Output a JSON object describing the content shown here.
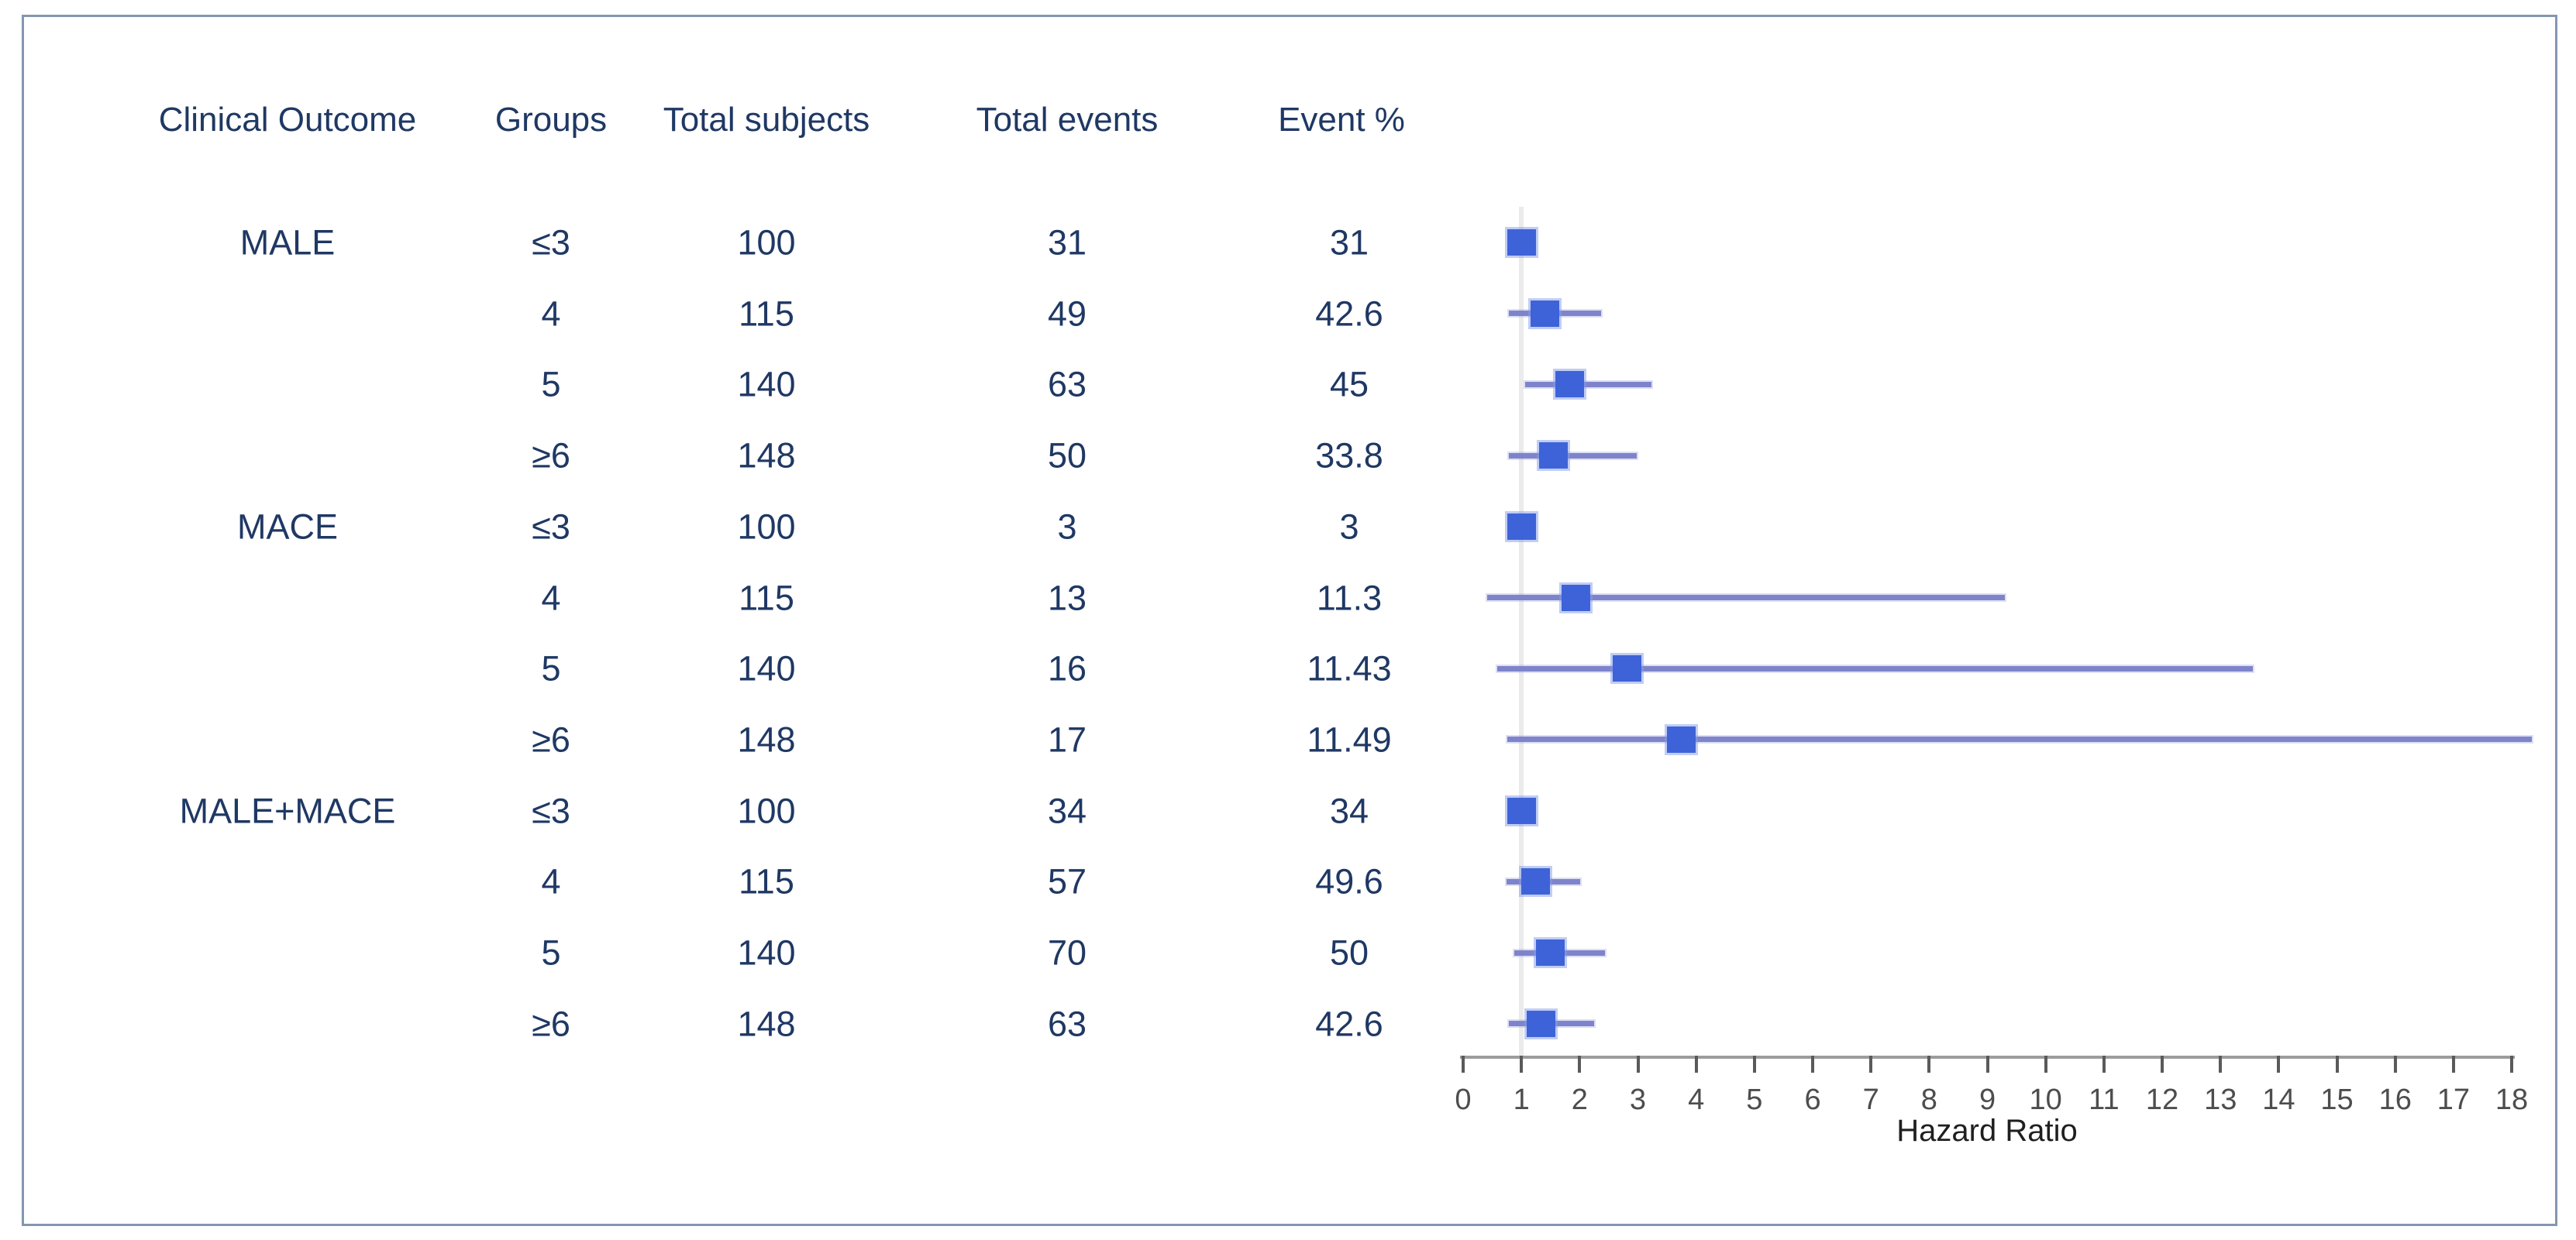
{
  "figure": {
    "border_color": "#8496B0",
    "background": "#FFFFFF"
  },
  "chart_data": {
    "type": "forest",
    "title": "",
    "columns": [
      "Clinical Outcome",
      "Groups",
      "Total subjects",
      "Total events",
      "Event %"
    ],
    "xlabel": "Hazard Ratio",
    "xlim": [
      0,
      18
    ],
    "xticks": [
      0,
      1,
      2,
      3,
      4,
      5,
      6,
      7,
      8,
      9,
      10,
      11,
      12,
      13,
      14,
      15,
      16,
      17,
      18
    ],
    "reference_line_x": 1,
    "grid": false,
    "rows": [
      {
        "outcome": "MALE",
        "group": "≤3",
        "subjects": "100",
        "events": "31",
        "event_pct": "31",
        "hr": 1.0,
        "ci_low": null,
        "ci_high": null
      },
      {
        "outcome": "",
        "group": "4",
        "subjects": "115",
        "events": "49",
        "event_pct": "42.6",
        "hr": 1.4,
        "ci_low": 0.79,
        "ci_high": 2.37
      },
      {
        "outcome": "",
        "group": "5",
        "subjects": "140",
        "events": "63",
        "event_pct": "45",
        "hr": 1.83,
        "ci_low": 1.06,
        "ci_high": 3.23
      },
      {
        "outcome": "",
        "group": "≥6",
        "subjects": "148",
        "events": "50",
        "event_pct": "33.8",
        "hr": 1.55,
        "ci_low": 0.78,
        "ci_high": 2.98
      },
      {
        "outcome": "MACE",
        "group": "≤3",
        "subjects": "100",
        "events": "3",
        "event_pct": "3",
        "hr": 1.0,
        "ci_low": null,
        "ci_high": null
      },
      {
        "outcome": "",
        "group": "4",
        "subjects": "115",
        "events": "13",
        "event_pct": "11.3",
        "hr": 1.93,
        "ci_low": 0.41,
        "ci_high": 9.3
      },
      {
        "outcome": "",
        "group": "5",
        "subjects": "140",
        "events": "16",
        "event_pct": "11.43",
        "hr": 2.82,
        "ci_low": 0.58,
        "ci_high": 13.55
      },
      {
        "outcome": "",
        "group": "≥6",
        "subjects": "148",
        "events": "17",
        "event_pct": "11.49",
        "hr": 3.75,
        "ci_low": 0.76,
        "ci_high": 18.35
      },
      {
        "outcome": "MALE+MACE",
        "group": "≤3",
        "subjects": "100",
        "events": "34",
        "event_pct": "34",
        "hr": 1.0,
        "ci_low": null,
        "ci_high": null
      },
      {
        "outcome": "",
        "group": "4",
        "subjects": "115",
        "events": "57",
        "event_pct": "49.6",
        "hr": 1.25,
        "ci_low": 0.74,
        "ci_high": 2.01
      },
      {
        "outcome": "",
        "group": "5",
        "subjects": "140",
        "events": "70",
        "event_pct": "50",
        "hr": 1.49,
        "ci_low": 0.88,
        "ci_high": 2.43
      },
      {
        "outcome": "",
        "group": "≥6",
        "subjects": "148",
        "events": "63",
        "event_pct": "42.6",
        "hr": 1.34,
        "ci_low": 0.78,
        "ci_high": 2.25
      }
    ],
    "colors": {
      "marker": "#3E63D8",
      "ci_line": "#7E84CB",
      "text": "#1F3864",
      "axis_line": "#9C9C9C",
      "tick": "#5A5A5A",
      "tick_label": "#4D4D4D",
      "axis_title": "#1F1F1F",
      "reference_line": "#EBEBEB",
      "border": "#8496B0"
    }
  }
}
